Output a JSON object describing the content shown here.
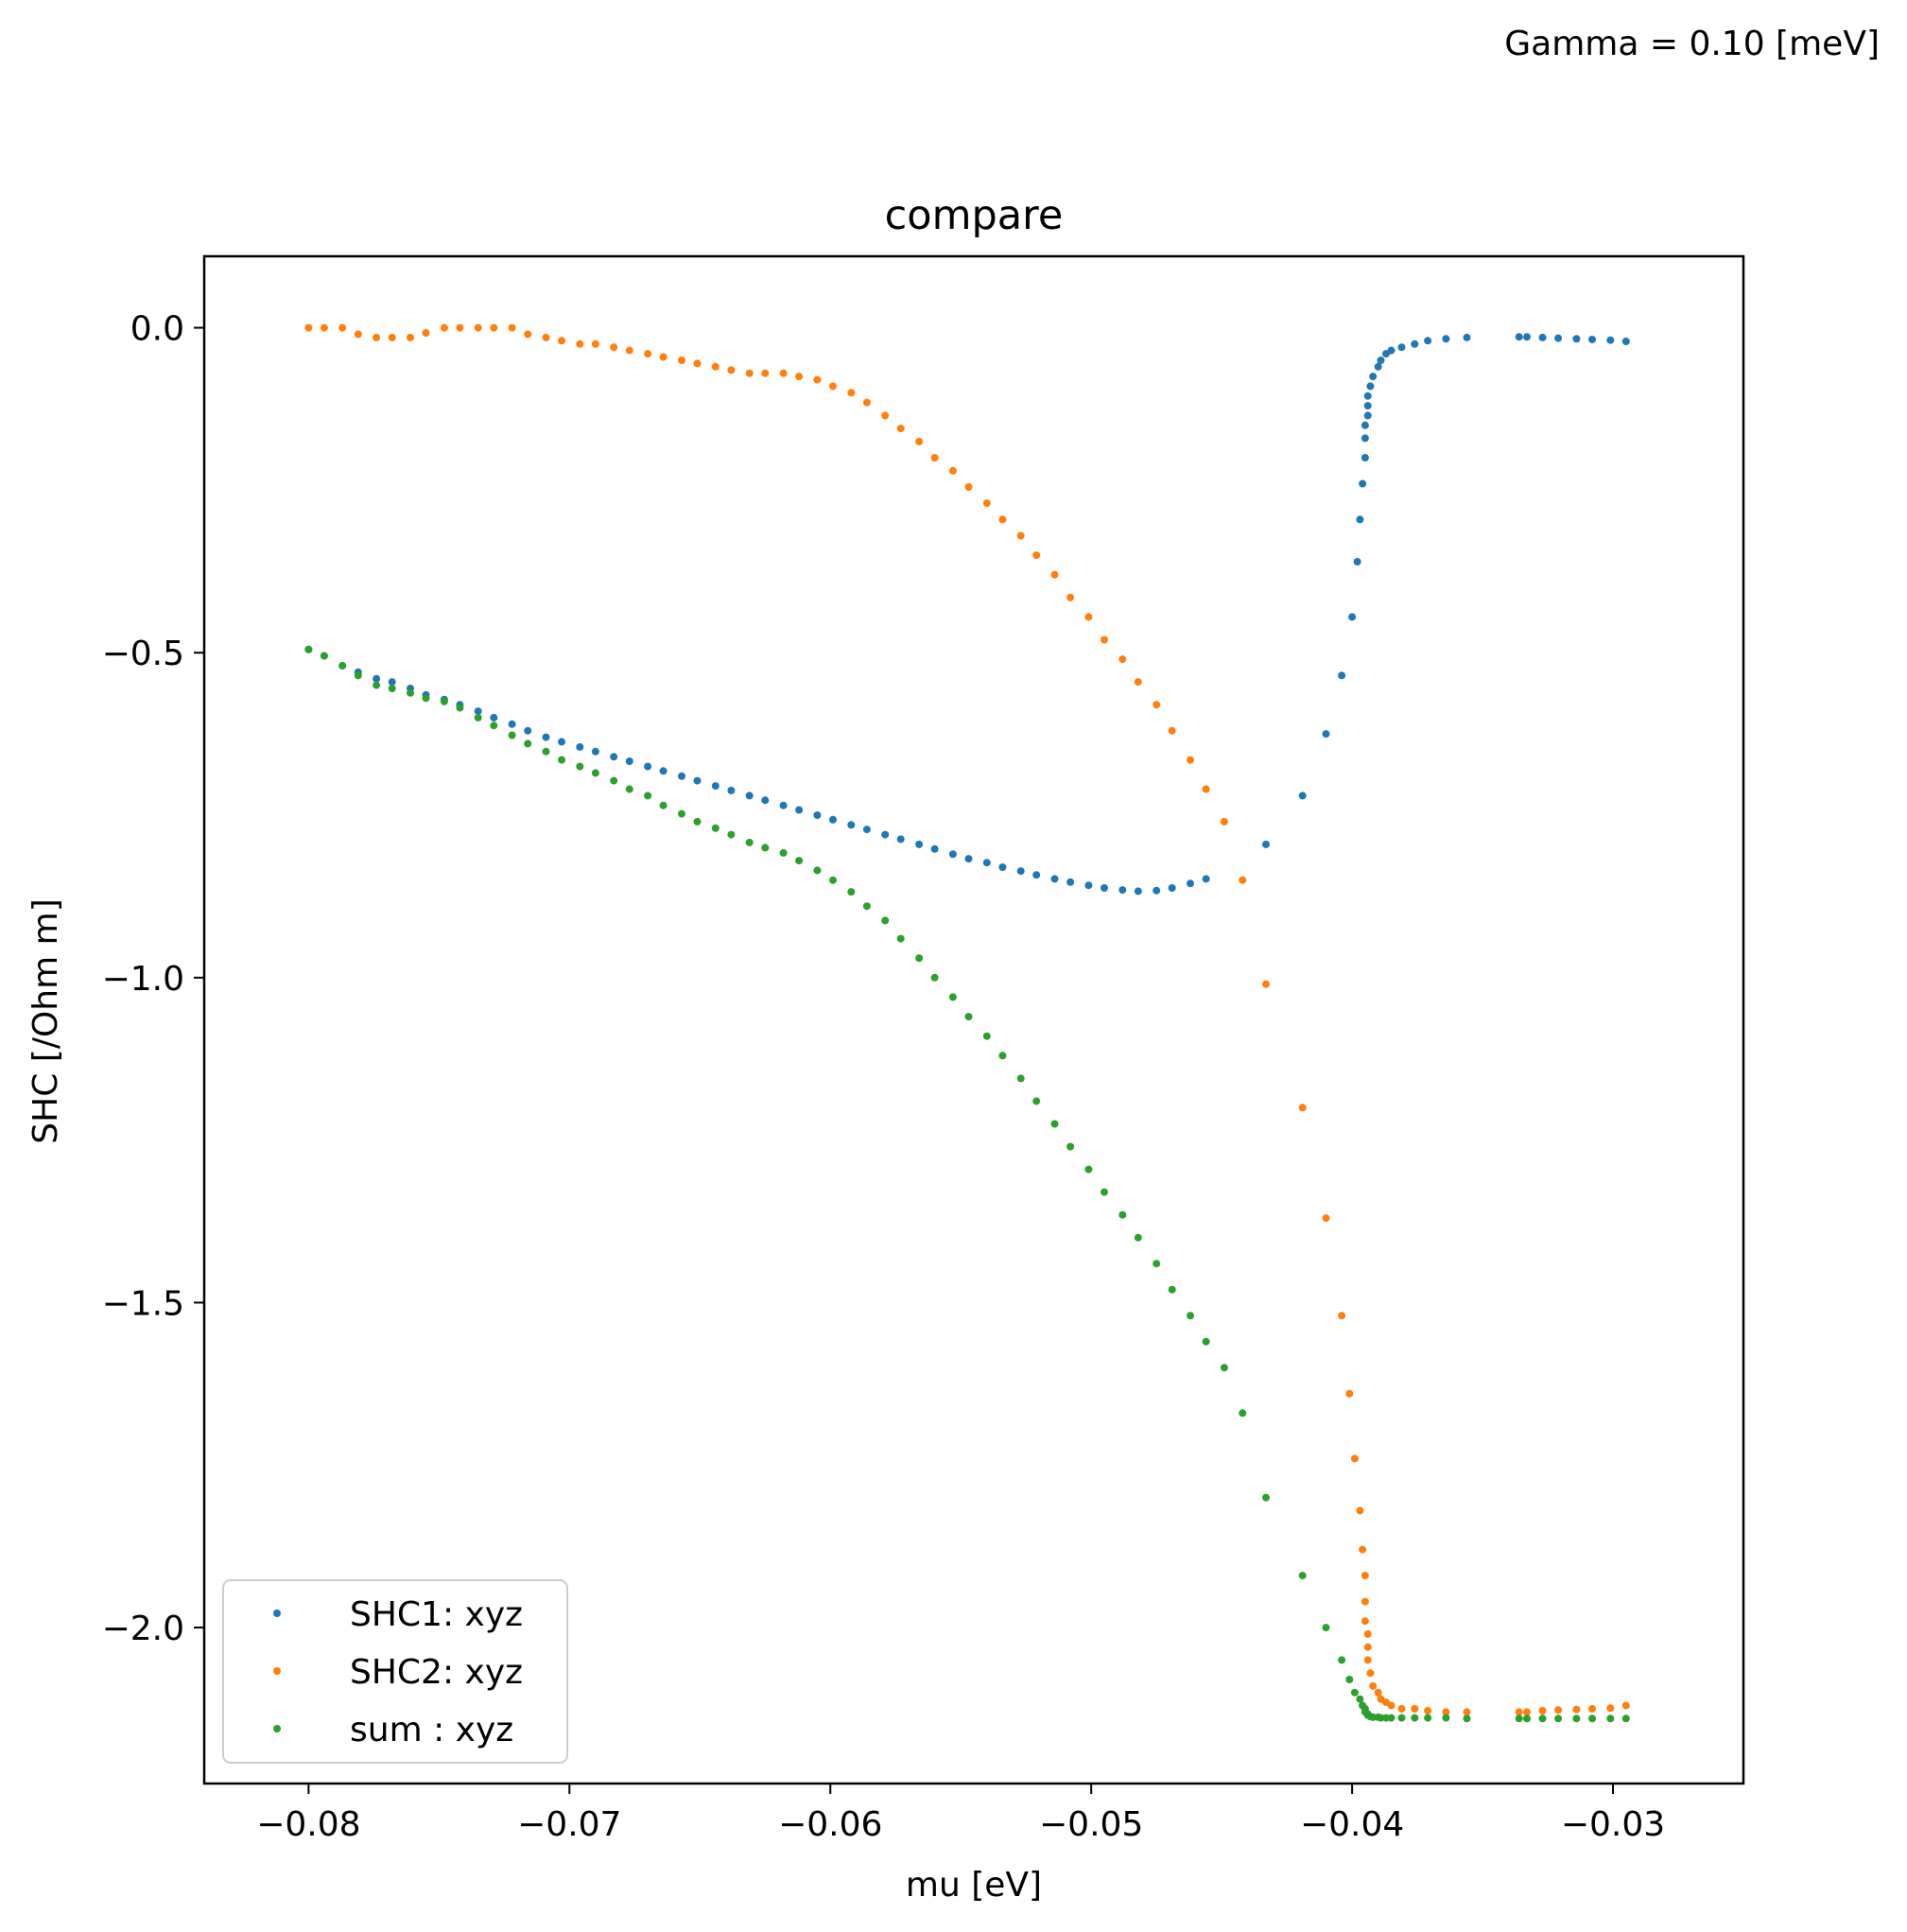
{
  "figure": {
    "annotation": "Gamma = 0.10 [meV]"
  },
  "chart_data": {
    "type": "scatter",
    "title": "compare",
    "xlabel": "mu [eV]",
    "ylabel": "SHC [/Ohm m]",
    "xlim": [
      -0.084,
      -0.025
    ],
    "ylim": [
      -2.24,
      0.11
    ],
    "xticks": [
      -0.08,
      -0.07,
      -0.06,
      -0.05,
      -0.04,
      -0.03
    ],
    "xtick_labels": [
      "−0.08",
      "−0.07",
      "−0.06",
      "−0.05",
      "−0.04",
      "−0.03"
    ],
    "yticks": [
      0.0,
      -0.5,
      -1.0,
      -1.5,
      -2.0
    ],
    "ytick_labels": [
      "0.0",
      "−0.5",
      "−1.0",
      "−1.5",
      "−2.0"
    ],
    "grid": false,
    "legend_position": "lower-left",
    "series": [
      {
        "name": "SHC1: xyz",
        "color": "#1f77b4",
        "points": [
          [
            -0.08,
            -0.495
          ],
          [
            -0.0794,
            -0.505
          ],
          [
            -0.0787,
            -0.52
          ],
          [
            -0.0781,
            -0.53
          ],
          [
            -0.0774,
            -0.54
          ],
          [
            -0.0768,
            -0.545
          ],
          [
            -0.0761,
            -0.555
          ],
          [
            -0.0755,
            -0.565
          ],
          [
            -0.0748,
            -0.572
          ],
          [
            -0.0742,
            -0.58
          ],
          [
            -0.0735,
            -0.59
          ],
          [
            -0.0729,
            -0.6
          ],
          [
            -0.0722,
            -0.61
          ],
          [
            -0.0716,
            -0.62
          ],
          [
            -0.0709,
            -0.63
          ],
          [
            -0.0703,
            -0.637
          ],
          [
            -0.0696,
            -0.645
          ],
          [
            -0.069,
            -0.652
          ],
          [
            -0.0683,
            -0.66
          ],
          [
            -0.0677,
            -0.667
          ],
          [
            -0.067,
            -0.675
          ],
          [
            -0.0664,
            -0.682
          ],
          [
            -0.0657,
            -0.69
          ],
          [
            -0.0651,
            -0.697
          ],
          [
            -0.0644,
            -0.705
          ],
          [
            -0.0638,
            -0.712
          ],
          [
            -0.0631,
            -0.72
          ],
          [
            -0.0625,
            -0.727
          ],
          [
            -0.0618,
            -0.735
          ],
          [
            -0.0612,
            -0.742
          ],
          [
            -0.0605,
            -0.75
          ],
          [
            -0.0599,
            -0.757
          ],
          [
            -0.0592,
            -0.765
          ],
          [
            -0.0586,
            -0.772
          ],
          [
            -0.0579,
            -0.78
          ],
          [
            -0.0573,
            -0.787
          ],
          [
            -0.0566,
            -0.795
          ],
          [
            -0.056,
            -0.802
          ],
          [
            -0.0553,
            -0.81
          ],
          [
            -0.0547,
            -0.817
          ],
          [
            -0.054,
            -0.823
          ],
          [
            -0.0534,
            -0.83
          ],
          [
            -0.0527,
            -0.836
          ],
          [
            -0.0521,
            -0.842
          ],
          [
            -0.0514,
            -0.848
          ],
          [
            -0.0508,
            -0.853
          ],
          [
            -0.0501,
            -0.858
          ],
          [
            -0.0495,
            -0.862
          ],
          [
            -0.0488,
            -0.865
          ],
          [
            -0.0482,
            -0.867
          ],
          [
            -0.0475,
            -0.866
          ],
          [
            -0.0469,
            -0.862
          ],
          [
            -0.0462,
            -0.855
          ],
          [
            -0.0456,
            -0.848
          ],
          [
            -0.0433,
            -0.795
          ],
          [
            -0.0419,
            -0.72
          ],
          [
            -0.041,
            -0.625
          ],
          [
            -0.0404,
            -0.535
          ],
          [
            -0.04,
            -0.445
          ],
          [
            -0.0398,
            -0.36
          ],
          [
            -0.0397,
            -0.295
          ],
          [
            -0.0396,
            -0.24
          ],
          [
            -0.0395,
            -0.2
          ],
          [
            -0.0395,
            -0.17
          ],
          [
            -0.0395,
            -0.15
          ],
          [
            -0.0394,
            -0.135
          ],
          [
            -0.0394,
            -0.12
          ],
          [
            -0.0394,
            -0.105
          ],
          [
            -0.0393,
            -0.09
          ],
          [
            -0.0392,
            -0.075
          ],
          [
            -0.039,
            -0.06
          ],
          [
            -0.0389,
            -0.05
          ],
          [
            -0.0387,
            -0.04
          ],
          [
            -0.0385,
            -0.035
          ],
          [
            -0.0381,
            -0.03
          ],
          [
            -0.0376,
            -0.025
          ],
          [
            -0.0371,
            -0.02
          ],
          [
            -0.0364,
            -0.017
          ],
          [
            -0.0356,
            -0.015
          ],
          [
            -0.0336,
            -0.014
          ],
          [
            -0.0333,
            -0.014
          ],
          [
            -0.0327,
            -0.015
          ],
          [
            -0.0321,
            -0.016
          ],
          [
            -0.0314,
            -0.017
          ],
          [
            -0.0308,
            -0.018
          ],
          [
            -0.0301,
            -0.019
          ],
          [
            -0.0295,
            -0.021
          ]
        ]
      },
      {
        "name": "SHC2: xyz",
        "color": "#ff7f0e",
        "points": [
          [
            -0.08,
            0.0
          ],
          [
            -0.0794,
            0.0
          ],
          [
            -0.0787,
            0.0
          ],
          [
            -0.0781,
            -0.01
          ],
          [
            -0.0774,
            -0.015
          ],
          [
            -0.0768,
            -0.015
          ],
          [
            -0.0761,
            -0.015
          ],
          [
            -0.0755,
            -0.008
          ],
          [
            -0.0748,
            0.0
          ],
          [
            -0.0742,
            0.0
          ],
          [
            -0.0735,
            0.0
          ],
          [
            -0.0729,
            0.0
          ],
          [
            -0.0722,
            0.0
          ],
          [
            -0.0716,
            -0.01
          ],
          [
            -0.0709,
            -0.015
          ],
          [
            -0.0703,
            -0.02
          ],
          [
            -0.0696,
            -0.025
          ],
          [
            -0.069,
            -0.025
          ],
          [
            -0.0683,
            -0.03
          ],
          [
            -0.0677,
            -0.035
          ],
          [
            -0.067,
            -0.04
          ],
          [
            -0.0664,
            -0.045
          ],
          [
            -0.0657,
            -0.05
          ],
          [
            -0.0651,
            -0.055
          ],
          [
            -0.0644,
            -0.06
          ],
          [
            -0.0638,
            -0.065
          ],
          [
            -0.0631,
            -0.07
          ],
          [
            -0.0625,
            -0.07
          ],
          [
            -0.0618,
            -0.07
          ],
          [
            -0.0612,
            -0.075
          ],
          [
            -0.0605,
            -0.08
          ],
          [
            -0.0599,
            -0.09
          ],
          [
            -0.0592,
            -0.1
          ],
          [
            -0.0586,
            -0.115
          ],
          [
            -0.0579,
            -0.135
          ],
          [
            -0.0573,
            -0.155
          ],
          [
            -0.0566,
            -0.175
          ],
          [
            -0.056,
            -0.2
          ],
          [
            -0.0553,
            -0.22
          ],
          [
            -0.0547,
            -0.245
          ],
          [
            -0.054,
            -0.27
          ],
          [
            -0.0534,
            -0.295
          ],
          [
            -0.0527,
            -0.32
          ],
          [
            -0.0521,
            -0.35
          ],
          [
            -0.0514,
            -0.38
          ],
          [
            -0.0508,
            -0.415
          ],
          [
            -0.0501,
            -0.445
          ],
          [
            -0.0495,
            -0.48
          ],
          [
            -0.0488,
            -0.51
          ],
          [
            -0.0482,
            -0.545
          ],
          [
            -0.0475,
            -0.58
          ],
          [
            -0.0469,
            -0.62
          ],
          [
            -0.0462,
            -0.665
          ],
          [
            -0.0456,
            -0.71
          ],
          [
            -0.0449,
            -0.76
          ],
          [
            -0.0442,
            -0.85
          ],
          [
            -0.0433,
            -1.01
          ],
          [
            -0.0419,
            -1.2
          ],
          [
            -0.041,
            -1.37
          ],
          [
            -0.0404,
            -1.52
          ],
          [
            -0.0401,
            -1.64
          ],
          [
            -0.0399,
            -1.74
          ],
          [
            -0.0397,
            -1.82
          ],
          [
            -0.0396,
            -1.88
          ],
          [
            -0.0395,
            -1.92
          ],
          [
            -0.0395,
            -1.96
          ],
          [
            -0.0395,
            -1.99
          ],
          [
            -0.0394,
            -2.01
          ],
          [
            -0.0394,
            -2.03
          ],
          [
            -0.0394,
            -2.05
          ],
          [
            -0.0393,
            -2.07
          ],
          [
            -0.0392,
            -2.09
          ],
          [
            -0.039,
            -2.1
          ],
          [
            -0.0389,
            -2.11
          ],
          [
            -0.0387,
            -2.115
          ],
          [
            -0.0385,
            -2.12
          ],
          [
            -0.0381,
            -2.125
          ],
          [
            -0.0376,
            -2.125
          ],
          [
            -0.0371,
            -2.128
          ],
          [
            -0.0364,
            -2.13
          ],
          [
            -0.0356,
            -2.13
          ],
          [
            -0.0336,
            -2.13
          ],
          [
            -0.0333,
            -2.13
          ],
          [
            -0.0327,
            -2.128
          ],
          [
            -0.0321,
            -2.127
          ],
          [
            -0.0314,
            -2.126
          ],
          [
            -0.0308,
            -2.125
          ],
          [
            -0.0301,
            -2.124
          ],
          [
            -0.0295,
            -2.12
          ]
        ]
      },
      {
        "name": "sum : xyz",
        "color": "#2ca02c",
        "points": [
          [
            -0.08,
            -0.495
          ],
          [
            -0.0794,
            -0.505
          ],
          [
            -0.0787,
            -0.52
          ],
          [
            -0.0781,
            -0.535
          ],
          [
            -0.0774,
            -0.55
          ],
          [
            -0.0768,
            -0.555
          ],
          [
            -0.0761,
            -0.562
          ],
          [
            -0.0755,
            -0.57
          ],
          [
            -0.0748,
            -0.575
          ],
          [
            -0.0742,
            -0.585
          ],
          [
            -0.0735,
            -0.6
          ],
          [
            -0.0729,
            -0.612
          ],
          [
            -0.0722,
            -0.627
          ],
          [
            -0.0716,
            -0.64
          ],
          [
            -0.0709,
            -0.652
          ],
          [
            -0.0703,
            -0.665
          ],
          [
            -0.0696,
            -0.675
          ],
          [
            -0.069,
            -0.685
          ],
          [
            -0.0683,
            -0.697
          ],
          [
            -0.0677,
            -0.71
          ],
          [
            -0.067,
            -0.72
          ],
          [
            -0.0664,
            -0.735
          ],
          [
            -0.0657,
            -0.748
          ],
          [
            -0.0651,
            -0.76
          ],
          [
            -0.0644,
            -0.77
          ],
          [
            -0.0638,
            -0.78
          ],
          [
            -0.0631,
            -0.792
          ],
          [
            -0.0625,
            -0.8
          ],
          [
            -0.0618,
            -0.808
          ],
          [
            -0.0612,
            -0.82
          ],
          [
            -0.0605,
            -0.835
          ],
          [
            -0.0599,
            -0.85
          ],
          [
            -0.0592,
            -0.868
          ],
          [
            -0.0586,
            -0.89
          ],
          [
            -0.0579,
            -0.912
          ],
          [
            -0.0573,
            -0.94
          ],
          [
            -0.0566,
            -0.97
          ],
          [
            -0.056,
            -1.0
          ],
          [
            -0.0553,
            -1.03
          ],
          [
            -0.0547,
            -1.06
          ],
          [
            -0.054,
            -1.09
          ],
          [
            -0.0534,
            -1.12
          ],
          [
            -0.0527,
            -1.155
          ],
          [
            -0.0521,
            -1.19
          ],
          [
            -0.0514,
            -1.225
          ],
          [
            -0.0508,
            -1.26
          ],
          [
            -0.0501,
            -1.295
          ],
          [
            -0.0495,
            -1.33
          ],
          [
            -0.0488,
            -1.365
          ],
          [
            -0.0482,
            -1.4
          ],
          [
            -0.0475,
            -1.44
          ],
          [
            -0.0469,
            -1.48
          ],
          [
            -0.0462,
            -1.52
          ],
          [
            -0.0456,
            -1.56
          ],
          [
            -0.0449,
            -1.6
          ],
          [
            -0.0442,
            -1.67
          ],
          [
            -0.0433,
            -1.8
          ],
          [
            -0.0419,
            -1.92
          ],
          [
            -0.041,
            -2.0
          ],
          [
            -0.0404,
            -2.05
          ],
          [
            -0.0401,
            -2.08
          ],
          [
            -0.0399,
            -2.1
          ],
          [
            -0.0397,
            -2.11
          ],
          [
            -0.0396,
            -2.12
          ],
          [
            -0.0395,
            -2.125
          ],
          [
            -0.0395,
            -2.13
          ],
          [
            -0.0394,
            -2.133
          ],
          [
            -0.0394,
            -2.135
          ],
          [
            -0.0393,
            -2.137
          ],
          [
            -0.0392,
            -2.138
          ],
          [
            -0.039,
            -2.138
          ],
          [
            -0.0389,
            -2.139
          ],
          [
            -0.0387,
            -2.139
          ],
          [
            -0.0385,
            -2.139
          ],
          [
            -0.0381,
            -2.139
          ],
          [
            -0.0376,
            -2.139
          ],
          [
            -0.0371,
            -2.139
          ],
          [
            -0.0364,
            -2.139
          ],
          [
            -0.0356,
            -2.14
          ],
          [
            -0.0336,
            -2.14
          ],
          [
            -0.0333,
            -2.14
          ],
          [
            -0.0327,
            -2.14
          ],
          [
            -0.0321,
            -2.14
          ],
          [
            -0.0314,
            -2.14
          ],
          [
            -0.0308,
            -2.14
          ],
          [
            -0.0301,
            -2.14
          ],
          [
            -0.0295,
            -2.14
          ]
        ]
      }
    ]
  }
}
